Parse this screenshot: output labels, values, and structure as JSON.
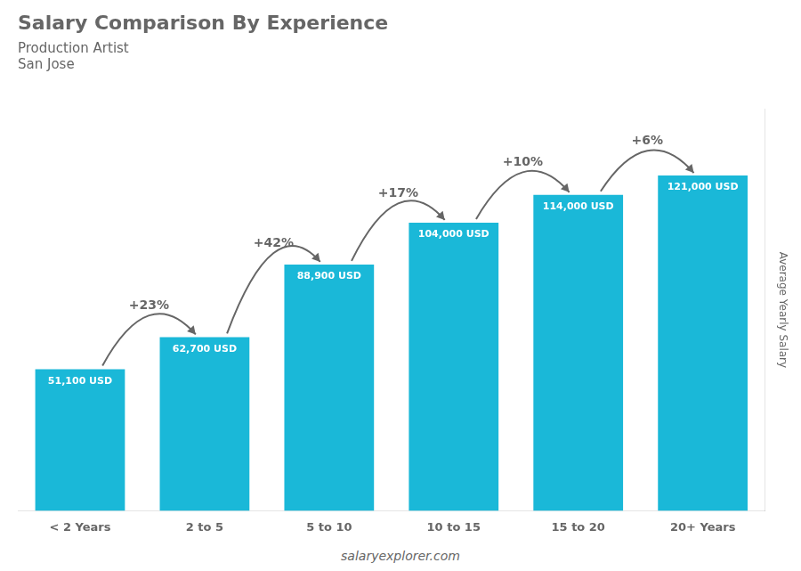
{
  "chart_data": {
    "type": "bar",
    "title": "Salary Comparison By Experience",
    "subtitle": [
      "Production Artist",
      "San Jose"
    ],
    "categories": [
      "< 2 Years",
      "2 to 5",
      "5 to 10",
      "10 to 15",
      "15 to 20",
      "20+ Years"
    ],
    "values": [
      51100,
      62700,
      88900,
      104000,
      114000,
      121000
    ],
    "value_labels": [
      "51,100 USD",
      "62,700 USD",
      "88,900 USD",
      "104,000 USD",
      "114,000 USD",
      "121,000 USD"
    ],
    "data_labels": true,
    "color": "#1ab8d8",
    "ylabel": "Average Yearly Salary",
    "ylim": [
      0,
      145000
    ],
    "tick_labels": "x",
    "grid": false,
    "annotations": [
      "+23%",
      "+42%",
      "+17%",
      "+10%",
      "+6%"
    ],
    "footer": "salaryexplorer.com"
  }
}
